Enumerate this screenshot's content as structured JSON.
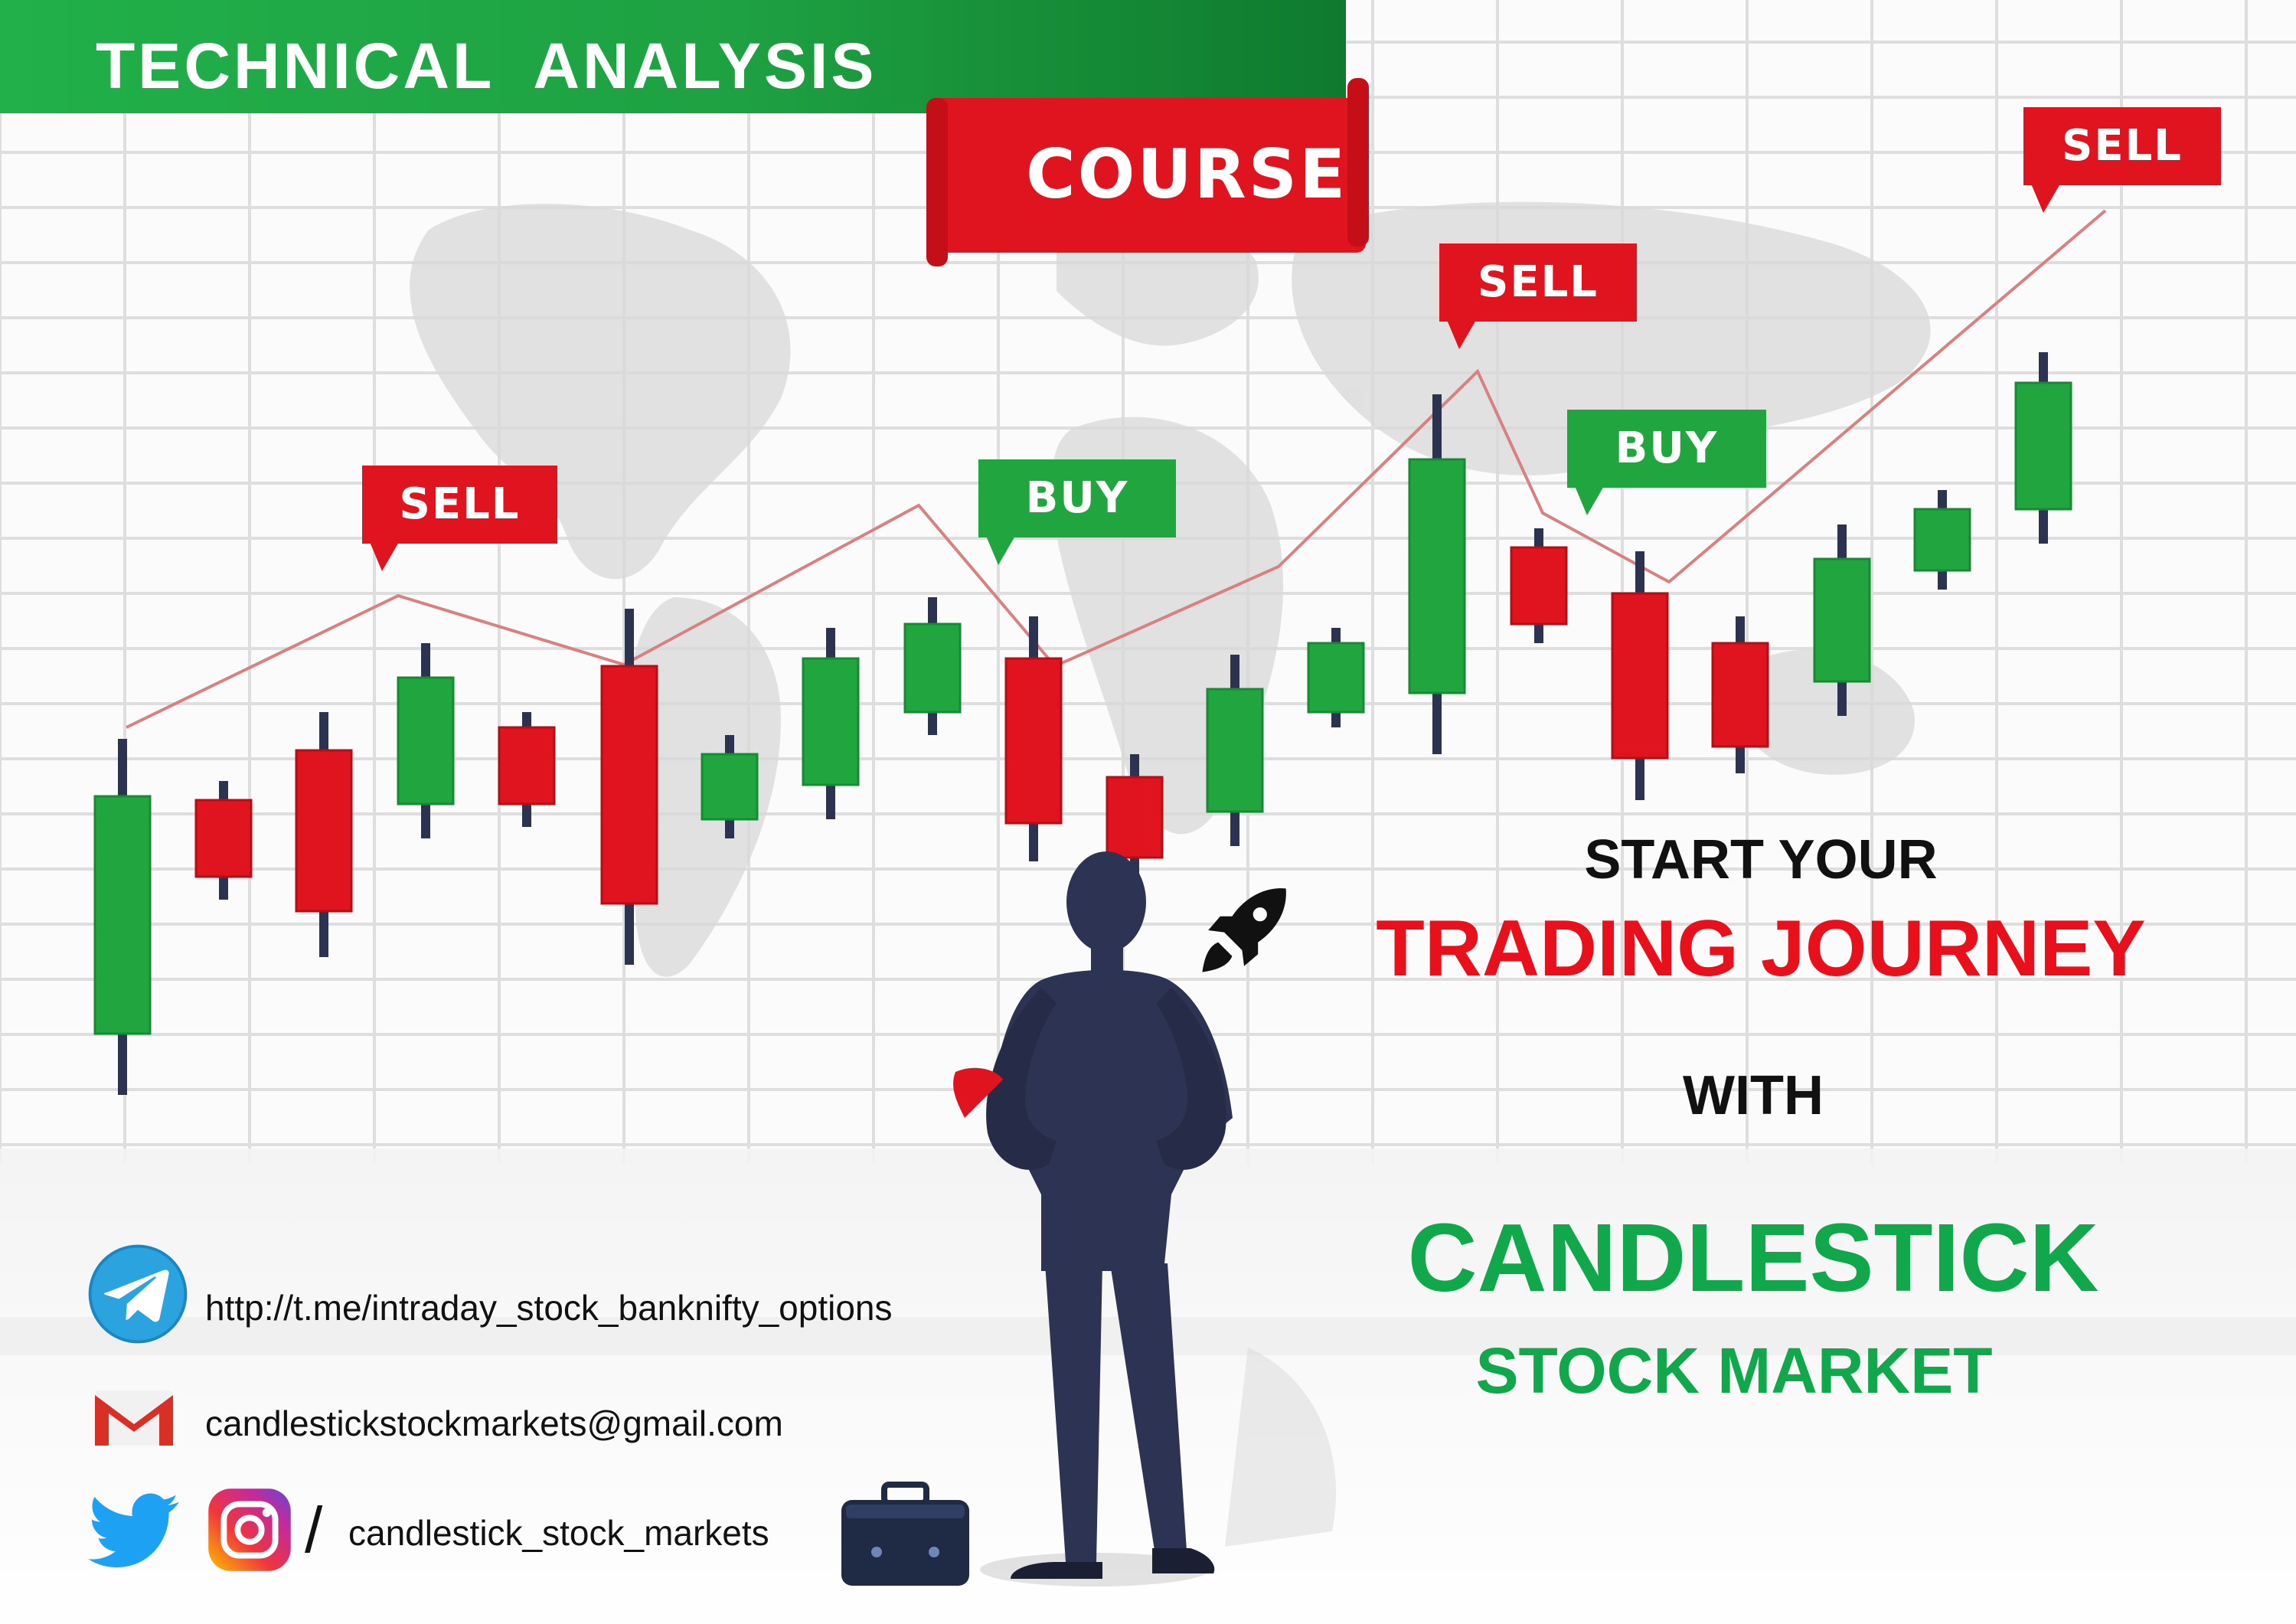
{
  "banner": {
    "title": "TECHNICAL  ANALYSIS",
    "course_label": "COURSE"
  },
  "signals": [
    {
      "label": "SELL",
      "type": "sell"
    },
    {
      "label": "BUY",
      "type": "buy"
    },
    {
      "label": "SELL",
      "type": "sell"
    },
    {
      "label": "BUY",
      "type": "buy"
    },
    {
      "label": "SELL",
      "type": "sell"
    }
  ],
  "headline": {
    "line1": "START YOUR",
    "line2": "TRADING JOURNEY",
    "line3": "WITH",
    "brand": "CANDLESTICK",
    "brand_sub": "STOCK MARKET"
  },
  "contacts": {
    "telegram": "http://t.me/intraday_stock_banknifty_options",
    "email": "candlestickstockmarkets@gmail.com",
    "social_separator": "/",
    "social_handle": "candlestick_stock_markets"
  },
  "colors": {
    "green": "#21a63f",
    "red": "#e0141e",
    "brand_green": "#10a84a",
    "headline_red": "#e8101a",
    "wick": "#2b3350",
    "suit": "#2c3353"
  },
  "icons": [
    "telegram-icon",
    "gmail-icon",
    "twitter-icon",
    "instagram-icon",
    "rocket-icon",
    "briefcase-icon"
  ]
}
